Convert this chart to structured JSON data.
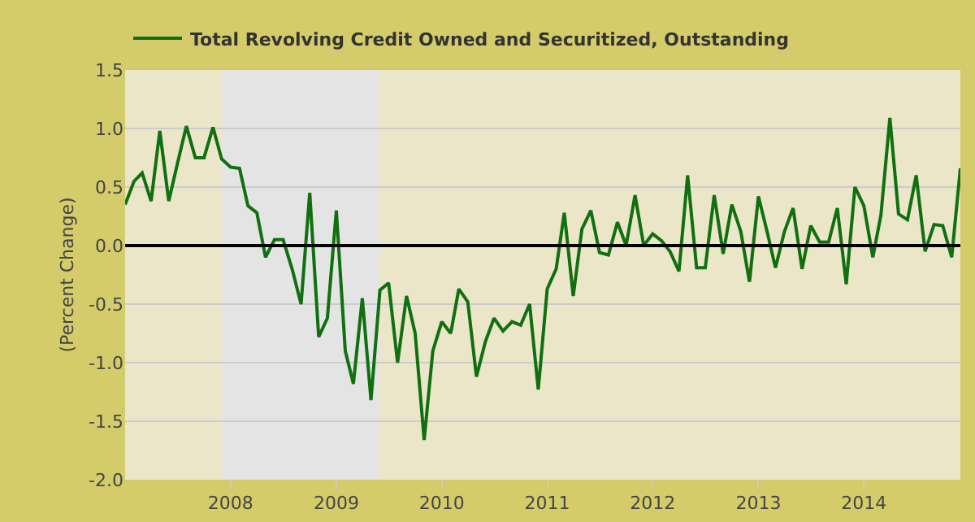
{
  "chart_data": {
    "type": "line",
    "ylabel": "(Percent Change)",
    "x": [
      "2007-01",
      "2007-02",
      "2007-03",
      "2007-04",
      "2007-05",
      "2007-06",
      "2007-07",
      "2007-08",
      "2007-09",
      "2007-10",
      "2007-11",
      "2007-12",
      "2008-01",
      "2008-02",
      "2008-03",
      "2008-04",
      "2008-05",
      "2008-06",
      "2008-07",
      "2008-08",
      "2008-09",
      "2008-10",
      "2008-11",
      "2008-12",
      "2009-01",
      "2009-02",
      "2009-03",
      "2009-04",
      "2009-05",
      "2009-06",
      "2009-07",
      "2009-08",
      "2009-09",
      "2009-10",
      "2009-11",
      "2009-12",
      "2010-01",
      "2010-02",
      "2010-03",
      "2010-04",
      "2010-05",
      "2010-06",
      "2010-07",
      "2010-08",
      "2010-09",
      "2010-10",
      "2010-11",
      "2010-12",
      "2011-01",
      "2011-02",
      "2011-03",
      "2011-04",
      "2011-05",
      "2011-06",
      "2011-07",
      "2011-08",
      "2011-09",
      "2011-10",
      "2011-11",
      "2011-12",
      "2012-01",
      "2012-02",
      "2012-03",
      "2012-04",
      "2012-05",
      "2012-06",
      "2012-07",
      "2012-08",
      "2012-09",
      "2012-10",
      "2012-11",
      "2012-12",
      "2013-01",
      "2013-02",
      "2013-03",
      "2013-04",
      "2013-05",
      "2013-06",
      "2013-07",
      "2013-08",
      "2013-09",
      "2013-10",
      "2013-11",
      "2013-12",
      "2014-01",
      "2014-02",
      "2014-03",
      "2014-04",
      "2014-05",
      "2014-06",
      "2014-07",
      "2014-08",
      "2014-09",
      "2014-10",
      "2014-11",
      "2014-12"
    ],
    "series": [
      {
        "name": "Total Revolving Credit Owned and Securitized, Outstanding",
        "color": "#107010",
        "values": [
          0.35,
          0.55,
          0.62,
          0.38,
          0.98,
          0.38,
          0.7,
          1.02,
          0.75,
          0.75,
          1.01,
          0.74,
          0.67,
          0.66,
          0.34,
          0.28,
          -0.1,
          0.05,
          0.05,
          -0.2,
          -0.5,
          0.45,
          -0.78,
          -0.62,
          0.3,
          -0.9,
          -1.18,
          -0.45,
          -1.32,
          -0.38,
          -0.32,
          -1.0,
          -0.43,
          -0.75,
          -1.66,
          -0.9,
          -0.65,
          -0.75,
          -0.37,
          -0.48,
          -1.12,
          -0.82,
          -0.62,
          -0.73,
          -0.65,
          -0.68,
          -0.5,
          -1.23,
          -0.37,
          -0.2,
          0.28,
          -0.43,
          0.14,
          0.3,
          -0.06,
          -0.08,
          0.2,
          0.0,
          0.43,
          0.0,
          0.1,
          0.04,
          -0.05,
          -0.22,
          0.6,
          -0.19,
          -0.19,
          0.43,
          -0.07,
          0.35,
          0.12,
          -0.31,
          0.42,
          0.11,
          -0.19,
          0.12,
          0.32,
          -0.2,
          0.17,
          0.03,
          0.03,
          0.32,
          -0.33,
          0.5,
          0.34,
          -0.1,
          0.26,
          1.09,
          0.27,
          0.22,
          0.6,
          -0.05,
          0.18,
          0.17,
          -0.1,
          0.66
        ]
      }
    ],
    "xlim": [
      "2007-01",
      "2014-12"
    ],
    "xticks": [
      {
        "value": "2008-01",
        "label": "2008"
      },
      {
        "value": "2009-01",
        "label": "2009"
      },
      {
        "value": "2010-01",
        "label": "2010"
      },
      {
        "value": "2011-01",
        "label": "2011"
      },
      {
        "value": "2012-01",
        "label": "2012"
      },
      {
        "value": "2013-01",
        "label": "2013"
      },
      {
        "value": "2014-01",
        "label": "2014"
      }
    ],
    "ylim": [
      -2,
      1.5
    ],
    "yticks": [
      {
        "value": -2,
        "label": "-2.0"
      },
      {
        "value": -1.5,
        "label": "-1.5"
      },
      {
        "value": -1,
        "label": "-1.0"
      },
      {
        "value": -0.5,
        "label": "-0.5"
      },
      {
        "value": 0,
        "label": "0.0"
      },
      {
        "value": 0.5,
        "label": "0.5"
      },
      {
        "value": 1,
        "label": "1.0"
      },
      {
        "value": 1.5,
        "label": "1.5"
      }
    ],
    "ref_lines": [
      {
        "axis": "y",
        "value": 0,
        "color": "#000000"
      }
    ],
    "bands": [
      {
        "axis": "x",
        "from": "2007-12",
        "to": "2009-06",
        "color": "#e4e4e4"
      }
    ],
    "grid": "y",
    "legend": "top left",
    "marker": "none",
    "line_style": "solid"
  }
}
